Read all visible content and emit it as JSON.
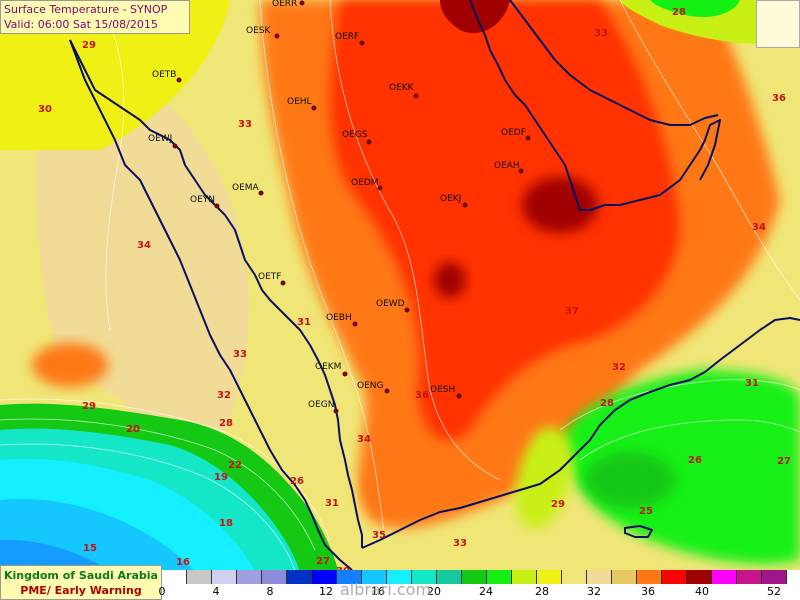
{
  "title": {
    "line1": "Surface Temperature  - SYNOP",
    "line2": "Valid: 06:00 Sat 15/08/2015"
  },
  "organization": {
    "line1": "Kingdom of Saudi Arabia",
    "line2": "PME/ Early Warning"
  },
  "watermark": "albrari.com",
  "legend": {
    "colors": [
      "#ffffff",
      "#c8c8c8",
      "#d0d0f0",
      "#a0a0e0",
      "#8c8cd8",
      "#0032c8",
      "#0000ff",
      "#1480ff",
      "#14c8ff",
      "#14f0ff",
      "#14e6c8",
      "#14c8a0",
      "#14c814",
      "#14f014",
      "#c8f014",
      "#f0f014",
      "#f0e678",
      "#f0dc96",
      "#e6c864",
      "#ff7814",
      "#ff0000",
      "#a00000",
      "#ff00ff",
      "#c8148c",
      "#a0148c"
    ],
    "ticks": [
      "0",
      "4",
      "8",
      "12",
      "16",
      "20",
      "24",
      "28",
      "32",
      "36",
      "40",
      "52"
    ]
  },
  "stations": [
    {
      "name": "OERR"
    },
    {
      "name": "OESK"
    },
    {
      "name": "OERF"
    },
    {
      "name": "OETB"
    },
    {
      "name": "OEKK"
    },
    {
      "name": "OEHL"
    },
    {
      "name": "OEWJ"
    },
    {
      "name": "OEGS"
    },
    {
      "name": "OEDF"
    },
    {
      "name": "OEAH"
    },
    {
      "name": "OEMA"
    },
    {
      "name": "OEDM"
    },
    {
      "name": "OEYN"
    },
    {
      "name": "OEKJ"
    },
    {
      "name": "OETF"
    },
    {
      "name": "OEWD"
    },
    {
      "name": "OEBH"
    },
    {
      "name": "OEKM"
    },
    {
      "name": "OENG"
    },
    {
      "name": "OESH"
    },
    {
      "name": "OEGN"
    }
  ],
  "isotherm_labels": [
    "29",
    "28",
    "33",
    "30",
    "33",
    "36",
    "34",
    "34",
    "31",
    "33",
    "37",
    "32",
    "29",
    "32",
    "31",
    "20",
    "36",
    "28",
    "26",
    "27",
    "28",
    "22",
    "34",
    "19",
    "26",
    "31",
    "29",
    "25",
    "18",
    "35",
    "33",
    "15",
    "16",
    "27",
    "30"
  ]
}
